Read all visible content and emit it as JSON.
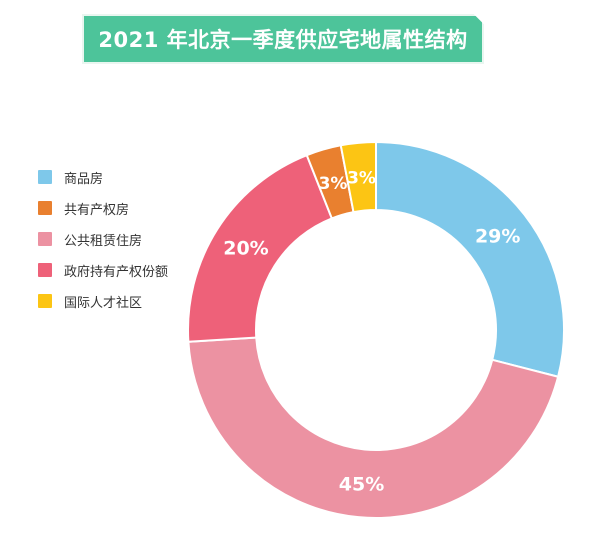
{
  "title": "2021 年北京一季度供应宅地属性结构",
  "colors": {
    "banner": "#4dc49a"
  },
  "chart_data": {
    "type": "pie",
    "donut": true,
    "legend_position": "left",
    "slices": [
      {
        "label": "商品房",
        "value": 29,
        "display": "29%",
        "color": "#7ec8ea"
      },
      {
        "label": "公共租赁住房",
        "value": 45,
        "display": "45%",
        "color": "#ec92a2"
      },
      {
        "label": "政府持有产权份额",
        "value": 20,
        "display": "20%",
        "color": "#ee6179"
      },
      {
        "label": "共有产权房",
        "value": 3,
        "display": "3%",
        "color": "#e9802f"
      },
      {
        "label": "国际人才社区",
        "value": 3,
        "display": "3%",
        "color": "#fcc514"
      }
    ],
    "legend_order": [
      "商品房",
      "共有产权房",
      "公共租赁住房",
      "政府持有产权份额",
      "国际人才社区"
    ]
  }
}
